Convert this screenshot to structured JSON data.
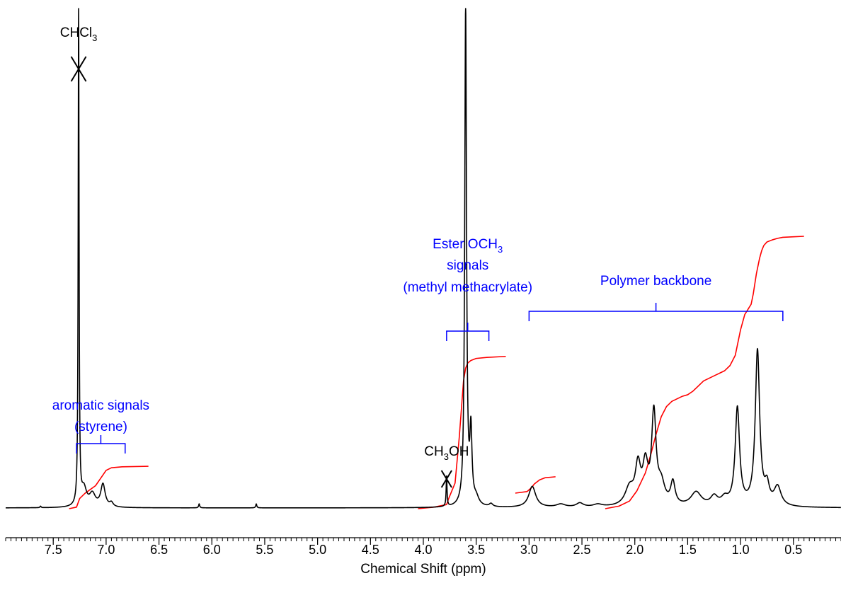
{
  "chart_data": {
    "type": "line",
    "title": "",
    "xlabel": "Chemical Shift (ppm)",
    "ylabel": "",
    "xlim": [
      7.95,
      0.05
    ],
    "x_direction": "reversed",
    "grid": false,
    "legend": "none",
    "x_ticks": [
      7.5,
      7.0,
      6.5,
      6.0,
      5.5,
      5.0,
      4.5,
      4.0,
      3.5,
      3.0,
      2.5,
      2.0,
      1.5,
      1.0,
      0.5
    ],
    "x_tick_labels": [
      "7.5",
      "7.0",
      "6.5",
      "6.0",
      "5.5",
      "5.0",
      "4.5",
      "4.0",
      "3.5",
      "3.0",
      "2.5",
      "2.0",
      "1.5",
      "1.0",
      "0.5"
    ],
    "series": [
      {
        "role": "spectrum",
        "color": "#000000",
        "peaks": [
          {
            "ppm": 7.26,
            "height": 100,
            "width": 0.005
          },
          {
            "ppm": 7.21,
            "height": 3.5,
            "width": 0.03
          },
          {
            "ppm": 7.13,
            "height": 2.5,
            "width": 0.035
          },
          {
            "ppm": 7.03,
            "height": 4.5,
            "width": 0.025
          },
          {
            "ppm": 6.95,
            "height": 0.8,
            "width": 0.02
          },
          {
            "ppm": 7.62,
            "height": 0.3,
            "width": 0.006
          },
          {
            "ppm": 6.12,
            "height": 0.8,
            "width": 0.006
          },
          {
            "ppm": 5.58,
            "height": 0.8,
            "width": 0.006
          },
          {
            "ppm": 3.78,
            "height": 6.0,
            "width": 0.005
          },
          {
            "ppm": 3.6,
            "height": 100.0,
            "width": 0.01
          },
          {
            "ppm": 3.55,
            "height": 14.0,
            "width": 0.012
          },
          {
            "ppm": 3.5,
            "height": 1.5,
            "width": 0.03
          },
          {
            "ppm": 3.36,
            "height": 0.6,
            "width": 0.02
          },
          {
            "ppm": 2.97,
            "height": 4.2,
            "width": 0.04
          },
          {
            "ppm": 2.7,
            "height": 0.6,
            "width": 0.05
          },
          {
            "ppm": 2.52,
            "height": 0.8,
            "width": 0.04
          },
          {
            "ppm": 2.35,
            "height": 0.5,
            "width": 0.05
          },
          {
            "ppm": 2.05,
            "height": 3.5,
            "width": 0.05
          },
          {
            "ppm": 1.97,
            "height": 7.5,
            "width": 0.03
          },
          {
            "ppm": 1.9,
            "height": 7.5,
            "width": 0.03
          },
          {
            "ppm": 1.82,
            "height": 18.0,
            "width": 0.025
          },
          {
            "ppm": 1.75,
            "height": 4.0,
            "width": 0.04
          },
          {
            "ppm": 1.64,
            "height": 4.5,
            "width": 0.025
          },
          {
            "ppm": 1.42,
            "height": 2.8,
            "width": 0.06
          },
          {
            "ppm": 1.25,
            "height": 1.8,
            "width": 0.04
          },
          {
            "ppm": 1.15,
            "height": 1.4,
            "width": 0.04
          },
          {
            "ppm": 1.03,
            "height": 19.5,
            "width": 0.025
          },
          {
            "ppm": 0.84,
            "height": 31.0,
            "width": 0.025
          },
          {
            "ppm": 0.75,
            "height": 3.5,
            "width": 0.025
          },
          {
            "ppm": 0.65,
            "height": 3.8,
            "width": 0.04
          }
        ]
      },
      {
        "role": "integral",
        "color": "#ff0000",
        "segments": [
          {
            "x": [
              7.35,
              7.28,
              7.25,
              7.2,
              7.1,
              7.05,
              7.0,
              6.95,
              6.85,
              6.6
            ],
            "y": [
              0,
              0.3,
              2.0,
              3.0,
              4.5,
              6.0,
              7.5,
              8.0,
              8.2,
              8.3
            ]
          },
          {
            "x": [
              4.05,
              3.9,
              3.78,
              3.76,
              3.7,
              3.66,
              3.62,
              3.6,
              3.58,
              3.55,
              3.5,
              3.4,
              3.22
            ],
            "y": [
              0,
              0.3,
              0.8,
              2.0,
              5.0,
              14.0,
              25.0,
              27.5,
              28.5,
              29.0,
              29.4,
              29.6,
              29.8
            ]
          },
          {
            "x": [
              3.13,
              3.02,
              2.98,
              2.95,
              2.9,
              2.85,
              2.75
            ],
            "y": [
              0,
              0.3,
              1.0,
              1.8,
              2.6,
              3.0,
              3.2
            ]
          },
          {
            "x": [
              2.28,
              2.15,
              2.05,
              1.98,
              1.9,
              1.85,
              1.8,
              1.75,
              1.7,
              1.65,
              1.6,
              1.55,
              1.5,
              1.45,
              1.4,
              1.35,
              1.25,
              1.15,
              1.1,
              1.05,
              1.0,
              0.96,
              0.93,
              0.9,
              0.88,
              0.85,
              0.82,
              0.8,
              0.78,
              0.75,
              0.7,
              0.65,
              0.6,
              0.5,
              0.4
            ],
            "y": [
              0,
              0.5,
              1.5,
              3.5,
              7.0,
              10.5,
              14.5,
              18.0,
              20.0,
              21.0,
              21.5,
              22.0,
              22.3,
              23.0,
              24.0,
              25.0,
              26.0,
              27.0,
              28.0,
              30.0,
              35.0,
              38.0,
              39.0,
              40.0,
              42.0,
              46.0,
              49.0,
              50.5,
              51.5,
              52.2,
              52.6,
              52.9,
              53.1,
              53.2,
              53.3
            ]
          }
        ]
      }
    ],
    "annotations": {
      "solvent_labels": [
        {
          "text": "CHCl",
          "sub": "3",
          "after": "",
          "ppm": 7.26
        },
        {
          "text": "CH",
          "sub": "3",
          "after": "OH",
          "ppm": 3.78
        }
      ],
      "assignments": [
        {
          "lines": [
            "aromatic signals",
            "(styrene)"
          ],
          "range": [
            7.28,
            6.82
          ],
          "color": "#0000ff"
        },
        {
          "lines": [
            "Ester OCH|3",
            "signals",
            "(methyl methacrylate)"
          ],
          "range": [
            3.78,
            3.38
          ],
          "color": "#0000ff"
        },
        {
          "lines": [
            "Polymer backbone"
          ],
          "range": [
            3.0,
            0.6
          ],
          "color": "#0000ff"
        }
      ]
    }
  }
}
